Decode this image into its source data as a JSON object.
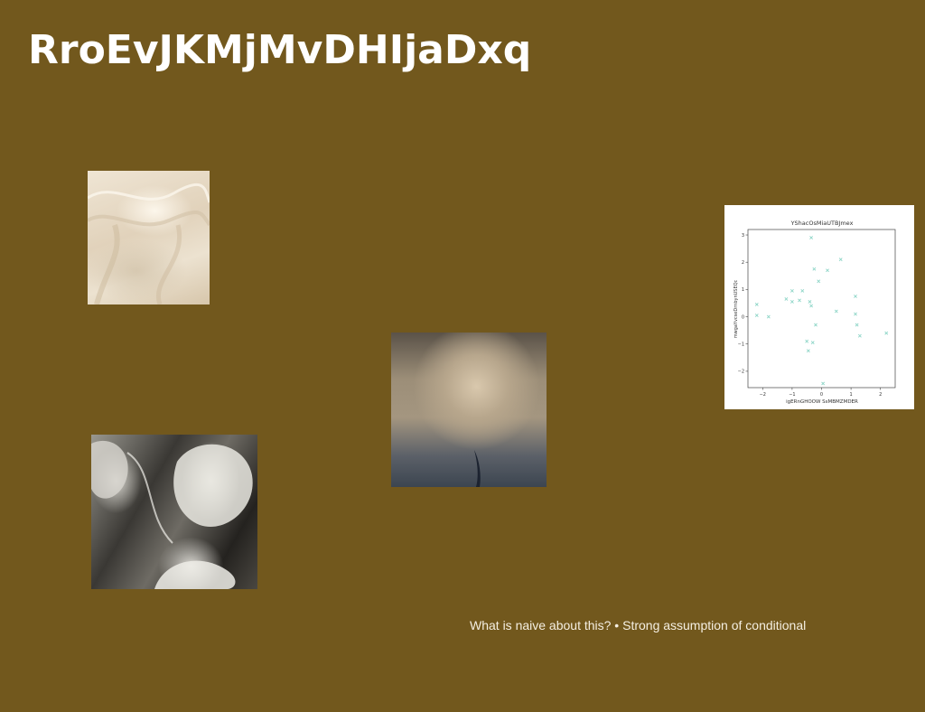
{
  "slide": {
    "title": "RroEvJKMjMvDHIjaDxq",
    "caption": "What is naive about this? • Strong assumption of conditional",
    "background_color": "#72581d"
  },
  "images": [
    {
      "name": "cream-fabric-photo"
    },
    {
      "name": "blurred-photo"
    },
    {
      "name": "monochrome-rock-photo"
    }
  ],
  "chart_data": {
    "type": "scatter",
    "title": "YShacOsMiaUTBJmex",
    "xlabel": "igERnGHOOW SsMBMZMDER",
    "ylabel": "mwgaYvcseDrnbynUSEQc",
    "xlim": [
      -2.5,
      2.5
    ],
    "ylim": [
      -2.6,
      3.2
    ],
    "xticks": [
      -2,
      -1,
      0,
      1,
      2
    ],
    "yticks": [
      -2,
      -1,
      0,
      1,
      2,
      3
    ],
    "marker_color": "#8fd6c8",
    "marker": "x",
    "points": [
      {
        "x": -2.2,
        "y": 0.45
      },
      {
        "x": -2.2,
        "y": 0.05
      },
      {
        "x": -1.8,
        "y": 0.0
      },
      {
        "x": -1.2,
        "y": 0.65
      },
      {
        "x": -1.0,
        "y": 0.95
      },
      {
        "x": -1.0,
        "y": 0.55
      },
      {
        "x": -0.75,
        "y": 0.6
      },
      {
        "x": -0.65,
        "y": 0.95
      },
      {
        "x": -0.5,
        "y": -0.9
      },
      {
        "x": -0.45,
        "y": -1.25
      },
      {
        "x": -0.4,
        "y": 0.55
      },
      {
        "x": -0.35,
        "y": 0.4
      },
      {
        "x": -0.35,
        "y": 2.9
      },
      {
        "x": -0.3,
        "y": -0.95
      },
      {
        "x": -0.25,
        "y": 1.75
      },
      {
        "x": -0.2,
        "y": -0.3
      },
      {
        "x": -0.1,
        "y": 1.3
      },
      {
        "x": 0.05,
        "y": -2.45
      },
      {
        "x": 0.2,
        "y": 1.7
      },
      {
        "x": 0.5,
        "y": 0.2
      },
      {
        "x": 0.65,
        "y": 2.1
      },
      {
        "x": 1.15,
        "y": 0.75
      },
      {
        "x": 1.15,
        "y": 0.1
      },
      {
        "x": 1.2,
        "y": -0.3
      },
      {
        "x": 1.3,
        "y": -0.7
      },
      {
        "x": 2.2,
        "y": -0.6
      }
    ]
  }
}
